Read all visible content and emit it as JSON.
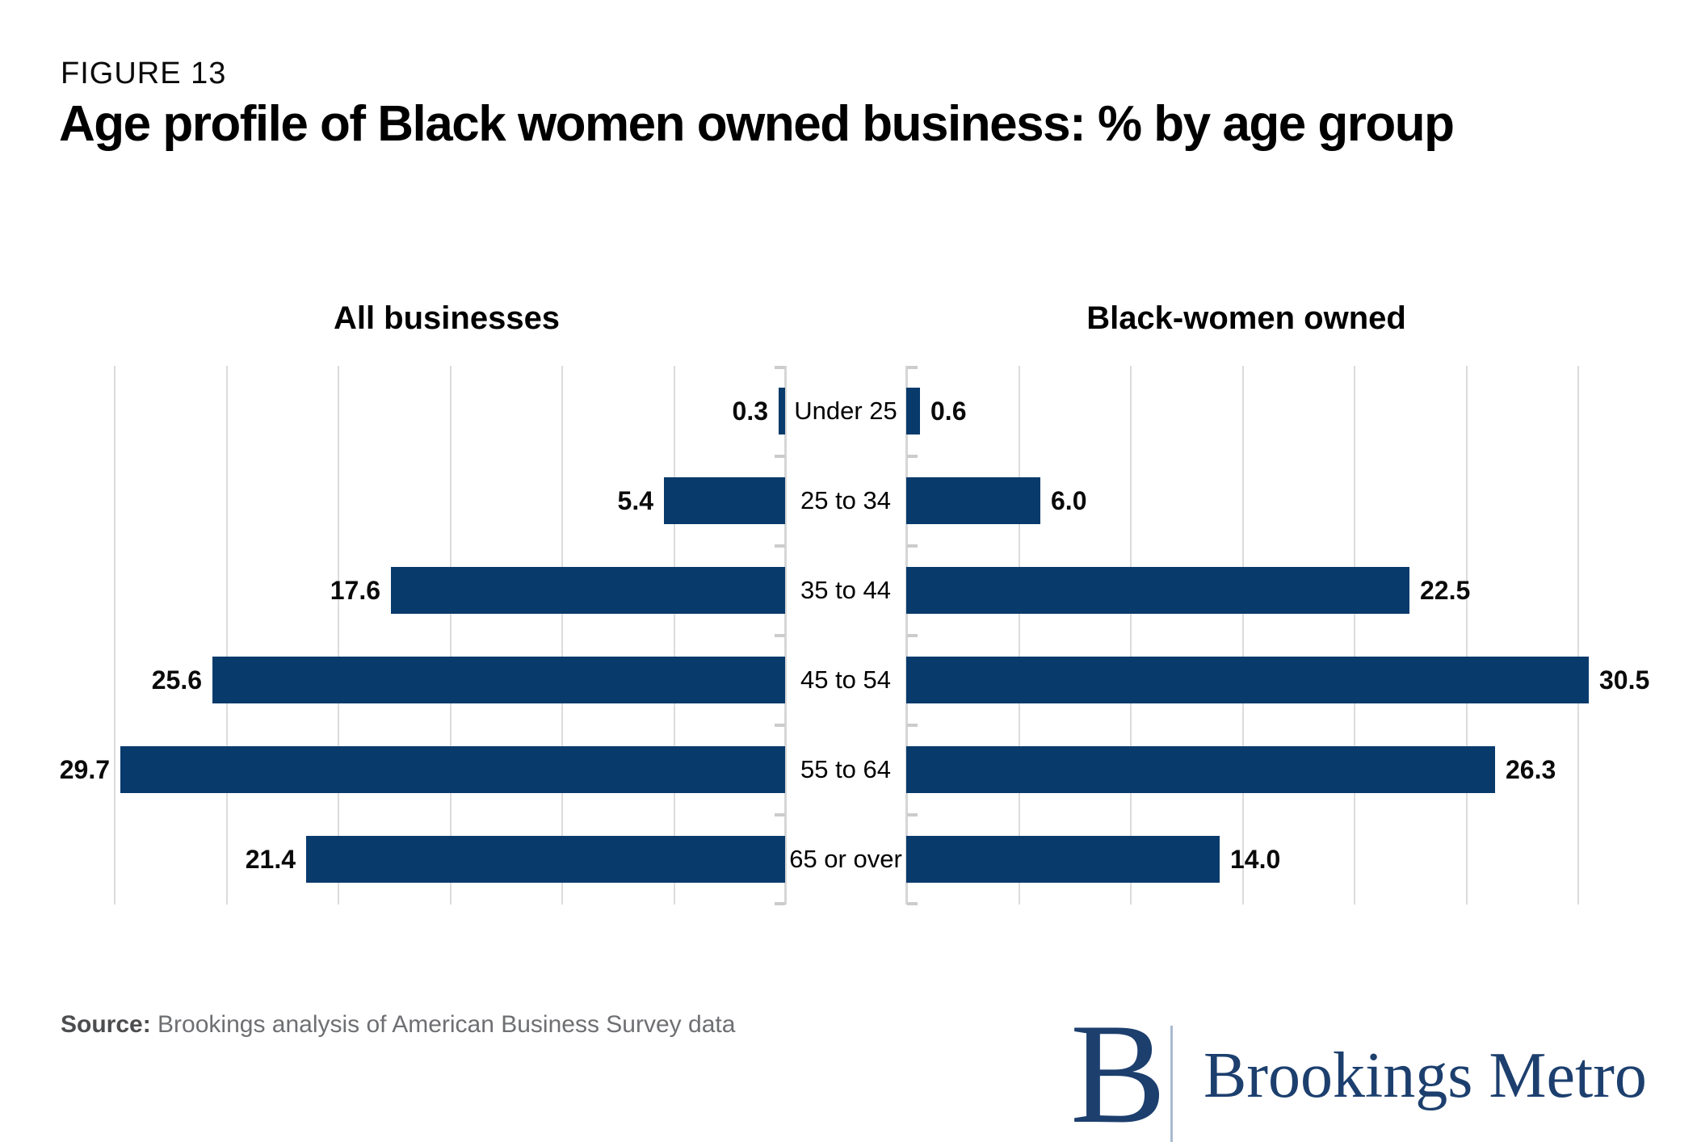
{
  "figure_label": "FIGURE 13",
  "title": "Age profile of Black women owned business: % by age group",
  "chart_data": {
    "type": "bar",
    "variant": "butterfly-pyramid",
    "orientation": "horizontal",
    "categories": [
      "Under 25",
      "25 to 34",
      "35 to 44",
      "45 to 54",
      "55 to 64",
      "65 or over"
    ],
    "series": [
      {
        "name": "All businesses",
        "side": "left",
        "values": [
          0.3,
          5.4,
          17.6,
          25.6,
          29.7,
          21.4
        ],
        "value_labels": [
          "0.3",
          "5.4",
          "17.6",
          "25.6",
          "29.7",
          "21.4"
        ]
      },
      {
        "name": "Black-women owned",
        "side": "right",
        "values": [
          0.6,
          6.0,
          22.5,
          30.5,
          26.3,
          14.0
        ],
        "value_labels": [
          "0.6",
          "6.0",
          "22.5",
          "30.5",
          "26.3",
          "14.0"
        ]
      }
    ],
    "axis": {
      "min": 0,
      "max": 30,
      "gridline_step": 5,
      "grid": true,
      "tick_labels_shown": false,
      "unit": "percent"
    },
    "legend_position": "column-headers",
    "bar_color": "#083a6c",
    "gridline_color": "#dcdcdc",
    "axisline_color": "#d6d6d6"
  },
  "footer": {
    "source_label": "Source:",
    "source_text": " Brookings analysis of American Business Survey data"
  },
  "logo": {
    "monogram": "B",
    "wordmark": "Brookings Metro",
    "color": "#1c3f6e"
  }
}
